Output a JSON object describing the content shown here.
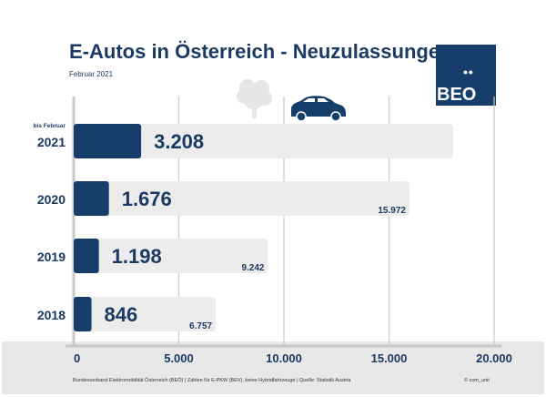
{
  "chart_data": {
    "type": "bar",
    "orientation": "horizontal",
    "title": "E-Autos in Österreich - Neuzulassungen",
    "subtitle": "Februar 2021",
    "categories": [
      "2021",
      "2020",
      "2019",
      "2018"
    ],
    "category_note": {
      "2021": "bis Februar"
    },
    "series": [
      {
        "values": [
          3208,
          1676,
          1198,
          846
        ],
        "labels": [
          "3.208",
          "1.676",
          "1.198",
          "846"
        ],
        "color": "#173e6b"
      },
      {
        "values": [
          18050,
          15972,
          9242,
          6757
        ],
        "labels": [
          "",
          "15.972",
          "9.242",
          "6.757"
        ],
        "color": "#ececec"
      }
    ],
    "xlim": [
      0,
      20000
    ],
    "xticks": [
      0,
      5000,
      10000,
      15000,
      20000
    ],
    "xtick_labels": [
      "0",
      "5.000",
      "10.000",
      "15.000",
      "20.000"
    ],
    "grid": true
  },
  "logo": {
    "text": "BEO",
    "dots": "••"
  },
  "footer": "Bundesverband Elektromobilität Österreich (BEÖ) | Zahlen für E-PKW (BEV), keine Hybridfahrzeuge | Quelle: Statistik Austria",
  "copyright": "© com_unit"
}
